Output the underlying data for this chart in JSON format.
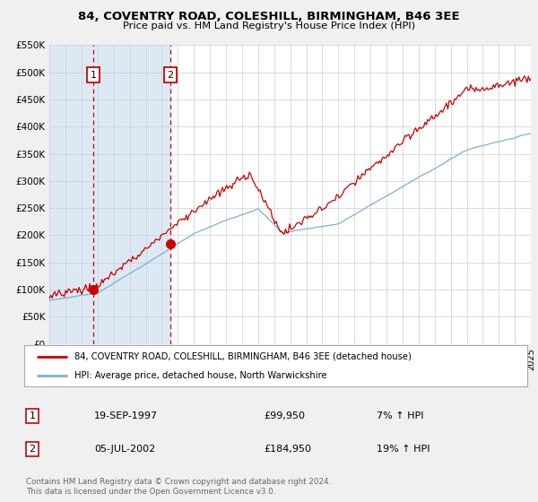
{
  "title": "84, COVENTRY ROAD, COLESHILL, BIRMINGHAM, B46 3EE",
  "subtitle": "Price paid vs. HM Land Registry's House Price Index (HPI)",
  "legend_line1": "84, COVENTRY ROAD, COLESHILL, BIRMINGHAM, B46 3EE (detached house)",
  "legend_line2": "HPI: Average price, detached house, North Warwickshire",
  "red_color": "#cc0000",
  "blue_color": "#7ab0d4",
  "transaction1_date": "19-SEP-1997",
  "transaction1_price": "£99,950",
  "transaction1_hpi": "7% ↑ HPI",
  "transaction1_year": 1997.72,
  "transaction1_value": 99950,
  "transaction2_date": "05-JUL-2002",
  "transaction2_price": "£184,950",
  "transaction2_hpi": "19% ↑ HPI",
  "transaction2_year": 2002.51,
  "transaction2_value": 184950,
  "xmin": 1995,
  "xmax": 2025,
  "ymin": 0,
  "ymax": 550000,
  "yticks": [
    0,
    50000,
    100000,
    150000,
    200000,
    250000,
    300000,
    350000,
    400000,
    450000,
    500000,
    550000
  ],
  "ytick_labels": [
    "£0",
    "£50K",
    "£100K",
    "£150K",
    "£200K",
    "£250K",
    "£300K",
    "£350K",
    "£400K",
    "£450K",
    "£500K",
    "£550K"
  ],
  "background_color": "#f0f0f0",
  "plot_bg_color": "#ffffff",
  "grid_color": "#cccccc",
  "shade_color": "#dce9f5",
  "footer": "Contains HM Land Registry data © Crown copyright and database right 2024.\nThis data is licensed under the Open Government Licence v3.0."
}
